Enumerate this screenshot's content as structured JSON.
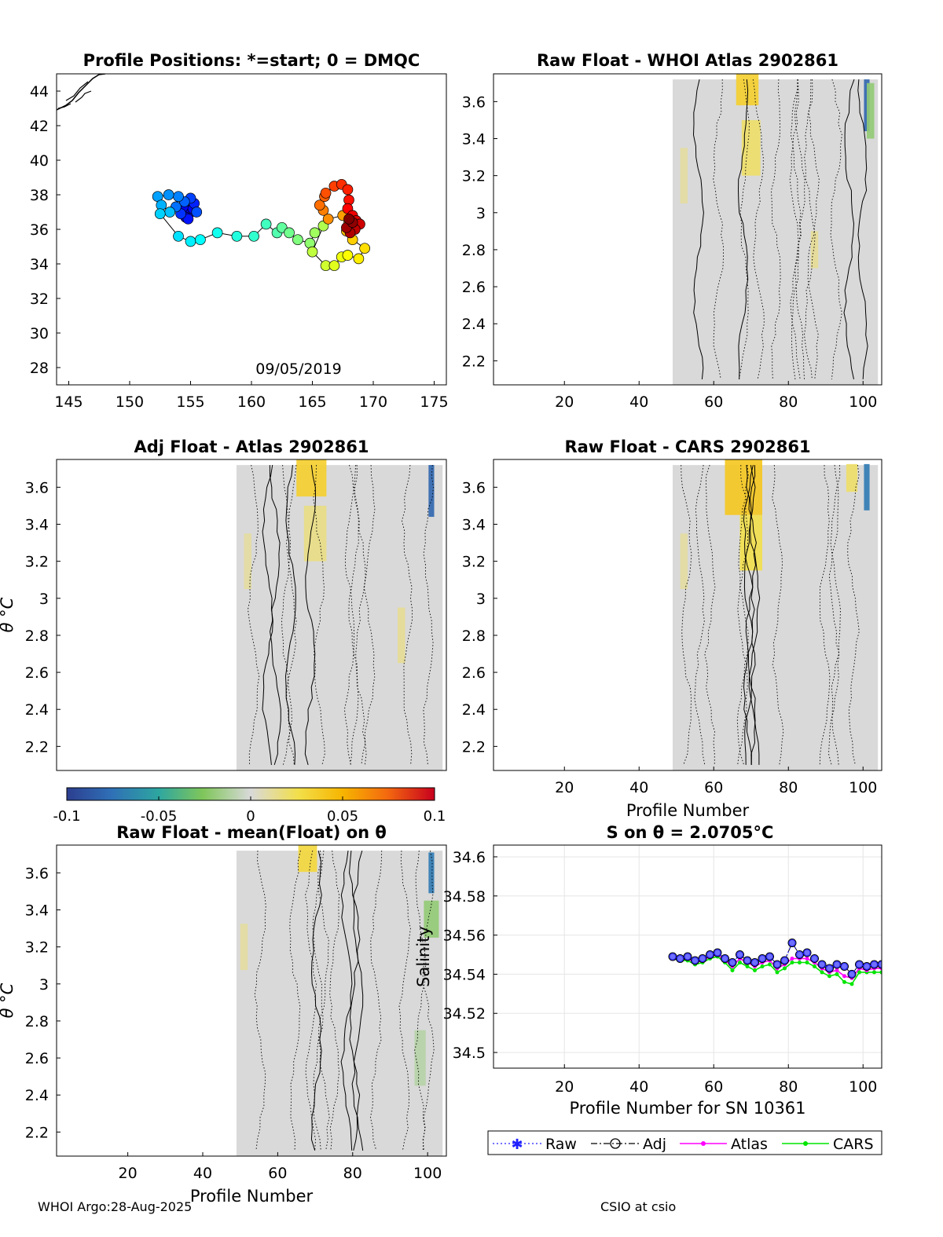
{
  "colors": {
    "neutral": "#d9d9d9",
    "contour": "#000000",
    "track": "#000000",
    "raw": "#1f1fff",
    "adj": "#000000",
    "atlas": "#ff00ff",
    "cars": "#00e600"
  },
  "panels": {
    "map": {
      "title": "Profile Positions: *=start; 0 = DMQC",
      "date": "09/05/2019",
      "xticks": [
        "145",
        "150",
        "155",
        "160",
        "165",
        "170",
        "175"
      ],
      "yticks": [
        "44",
        "42",
        "40",
        "38",
        "36",
        "34",
        "32",
        "30",
        "28"
      ]
    },
    "p2": {
      "title": "Raw Float - WHOI Atlas  2902861"
    },
    "p3": {
      "title": "Adj Float - Atlas  2902861",
      "ylabel": "θ °C"
    },
    "p4": {
      "title": "Raw Float - CARS  2902861",
      "xlabel": "Profile Number"
    },
    "p5": {
      "title": "Raw Float - mean(Float) on θ",
      "ylabel": "θ °C",
      "xlabel": "Profile Number"
    },
    "p6": {
      "title": "S on θ = 2.0705°C",
      "ylabel": "Salinity",
      "xlabel": "Profile Number for SN 10361"
    },
    "theta_ticks": [
      "3.6",
      "3.4",
      "3.2",
      "3",
      "2.8",
      "2.6",
      "2.4",
      "2.2"
    ],
    "profile_ticks": [
      "20",
      "40",
      "60",
      "80",
      "100"
    ],
    "sal_ticks": [
      "34.6",
      "34.58",
      "34.56",
      "34.54",
      "34.52",
      "34.5"
    ]
  },
  "colorbar": {
    "ticks": [
      "-0.1",
      "-0.05",
      "0",
      "0.05",
      "0.1"
    ]
  },
  "legend": {
    "raw": "Raw",
    "adj": "Adj",
    "atlas": "Atlas",
    "cars": "CARS"
  },
  "footer": {
    "left": "WHOI Argo:28-Aug-2025",
    "right": "CSIO at csio"
  },
  "chart_data": [
    {
      "type": "scatter",
      "name": "profile positions",
      "title": "Profile Positions: *=start; 0 = DMQC",
      "xlim": [
        144,
        176
      ],
      "ylim": [
        27,
        45
      ],
      "annotation": "09/05/2019",
      "track": [
        {
          "lon": 155.0,
          "lat": 37.0
        },
        {
          "lon": 154.6,
          "lat": 36.7
        },
        {
          "lon": 154.4,
          "lat": 37.3
        },
        {
          "lon": 155.2,
          "lat": 37.2
        },
        {
          "lon": 154.8,
          "lat": 36.6
        },
        {
          "lon": 155.3,
          "lat": 37.5
        },
        {
          "lon": 154.2,
          "lat": 36.9
        },
        {
          "lon": 155.0,
          "lat": 37.8
        },
        {
          "lon": 155.5,
          "lat": 37.0
        },
        {
          "lon": 154.5,
          "lat": 37.6
        },
        {
          "lon": 153.8,
          "lat": 37.3
        },
        {
          "lon": 154.0,
          "lat": 37.9
        },
        {
          "lon": 153.2,
          "lat": 38.0
        },
        {
          "lon": 152.3,
          "lat": 37.9
        },
        {
          "lon": 152.6,
          "lat": 37.4
        },
        {
          "lon": 153.3,
          "lat": 37.0
        },
        {
          "lon": 152.5,
          "lat": 36.9
        },
        {
          "lon": 154.0,
          "lat": 35.6
        },
        {
          "lon": 155.0,
          "lat": 35.3
        },
        {
          "lon": 155.8,
          "lat": 35.4
        },
        {
          "lon": 157.2,
          "lat": 35.8
        },
        {
          "lon": 158.8,
          "lat": 35.6
        },
        {
          "lon": 160.2,
          "lat": 35.6
        },
        {
          "lon": 161.2,
          "lat": 36.3
        },
        {
          "lon": 162.1,
          "lat": 35.8
        },
        {
          "lon": 162.5,
          "lat": 36.1
        },
        {
          "lon": 163.1,
          "lat": 35.8
        },
        {
          "lon": 163.8,
          "lat": 35.4
        },
        {
          "lon": 164.8,
          "lat": 35.2
        },
        {
          "lon": 165.2,
          "lat": 35.8
        },
        {
          "lon": 165.9,
          "lat": 36.2
        },
        {
          "lon": 165.0,
          "lat": 34.7
        },
        {
          "lon": 166.1,
          "lat": 33.9
        },
        {
          "lon": 166.8,
          "lat": 33.9
        },
        {
          "lon": 167.4,
          "lat": 34.4
        },
        {
          "lon": 167.9,
          "lat": 34.5
        },
        {
          "lon": 168.8,
          "lat": 34.3
        },
        {
          "lon": 169.3,
          "lat": 34.9
        },
        {
          "lon": 168.3,
          "lat": 35.4
        },
        {
          "lon": 167.8,
          "lat": 35.9
        },
        {
          "lon": 168.0,
          "lat": 36.4
        },
        {
          "lon": 167.5,
          "lat": 36.8
        },
        {
          "lon": 166.3,
          "lat": 36.6
        },
        {
          "lon": 165.9,
          "lat": 37.1
        },
        {
          "lon": 165.6,
          "lat": 37.4
        },
        {
          "lon": 166.0,
          "lat": 37.9
        },
        {
          "lon": 166.1,
          "lat": 38.1
        },
        {
          "lon": 166.8,
          "lat": 38.5
        },
        {
          "lon": 167.4,
          "lat": 38.6
        },
        {
          "lon": 167.9,
          "lat": 38.3
        },
        {
          "lon": 168.0,
          "lat": 37.7
        },
        {
          "lon": 167.9,
          "lat": 37.2
        },
        {
          "lon": 168.3,
          "lat": 36.8
        },
        {
          "lon": 168.6,
          "lat": 36.5
        },
        {
          "lon": 168.9,
          "lat": 36.3
        },
        {
          "lon": 168.5,
          "lat": 36.0
        },
        {
          "lon": 168.1,
          "lat": 35.8
        },
        {
          "lon": 167.8,
          "lat": 36.1
        },
        {
          "lon": 168.3,
          "lat": 36.4
        },
        {
          "lon": 168.0,
          "lat": 36.6
        }
      ]
    },
    {
      "type": "heatmap",
      "name": "Raw Float - WHOI Atlas  2902861",
      "xlim": [
        1,
        105
      ],
      "ylim": [
        2.07,
        3.75
      ],
      "data_x_range": [
        49,
        104
      ],
      "colorbar_range": [
        -0.1,
        0.1
      ],
      "anomalies": [
        {
          "x": 69,
          "y": 3.68,
          "value": 0.035,
          "w": 6,
          "h": 0.2
        },
        {
          "x": 70,
          "y": 3.35,
          "value": 0.02,
          "w": 5,
          "h": 0.3
        },
        {
          "x": 101,
          "y": 3.58,
          "value": -0.08,
          "w": 1.5,
          "h": 0.28
        },
        {
          "x": 102,
          "y": 3.55,
          "value": -0.02,
          "w": 2,
          "h": 0.3
        },
        {
          "x": 52,
          "y": 3.2,
          "value": 0.01,
          "w": 2,
          "h": 0.3
        },
        {
          "x": 87,
          "y": 2.8,
          "value": 0.012,
          "w": 2,
          "h": 0.2
        }
      ]
    },
    {
      "type": "heatmap",
      "name": "Adj Float - Atlas  2902861",
      "xlim": [
        1,
        105
      ],
      "ylim": [
        2.07,
        3.75
      ],
      "data_x_range": [
        49,
        104
      ],
      "colorbar_range": [
        -0.1,
        0.1
      ],
      "anomalies": [
        {
          "x": 69,
          "y": 3.65,
          "value": 0.035,
          "w": 8,
          "h": 0.2
        },
        {
          "x": 70,
          "y": 3.35,
          "value": 0.015,
          "w": 6,
          "h": 0.3
        },
        {
          "x": 101,
          "y": 3.58,
          "value": -0.08,
          "w": 1.5,
          "h": 0.28
        },
        {
          "x": 93,
          "y": 2.8,
          "value": 0.012,
          "w": 2,
          "h": 0.3
        },
        {
          "x": 52,
          "y": 3.2,
          "value": 0.01,
          "w": 2,
          "h": 0.3
        }
      ]
    },
    {
      "type": "heatmap",
      "name": "Raw Float - CARS  2902861",
      "xlim": [
        1,
        105
      ],
      "ylim": [
        2.07,
        3.75
      ],
      "data_x_range": [
        49,
        104
      ],
      "colorbar_range": [
        -0.1,
        0.1
      ],
      "anomalies": [
        {
          "x": 68,
          "y": 3.6,
          "value": 0.04,
          "w": 10,
          "h": 0.3
        },
        {
          "x": 70,
          "y": 3.3,
          "value": 0.025,
          "w": 6,
          "h": 0.3
        },
        {
          "x": 101,
          "y": 3.6,
          "value": -0.07,
          "w": 1.5,
          "h": 0.25
        },
        {
          "x": 97,
          "y": 3.65,
          "value": 0.02,
          "w": 3,
          "h": 0.15
        },
        {
          "x": 52,
          "y": 3.2,
          "value": 0.01,
          "w": 2,
          "h": 0.3
        }
      ]
    },
    {
      "type": "heatmap",
      "name": "Raw Float - mean(Float) on θ",
      "xlim": [
        1,
        105
      ],
      "ylim": [
        2.07,
        3.75
      ],
      "data_x_range": [
        49,
        104
      ],
      "colorbar_range": [
        -0.1,
        0.1
      ],
      "anomalies": [
        {
          "x": 68,
          "y": 3.68,
          "value": 0.03,
          "w": 5,
          "h": 0.15
        },
        {
          "x": 101,
          "y": 3.6,
          "value": -0.07,
          "w": 1.5,
          "h": 0.22
        },
        {
          "x": 101,
          "y": 3.35,
          "value": -0.02,
          "w": 4,
          "h": 0.2
        },
        {
          "x": 51,
          "y": 3.2,
          "value": 0.01,
          "w": 2,
          "h": 0.25
        },
        {
          "x": 98,
          "y": 2.6,
          "value": -0.01,
          "w": 3,
          "h": 0.3
        }
      ]
    },
    {
      "type": "line",
      "name": "S on θ = 2.0705°C",
      "title": "S on θ = 2.0705°C",
      "xlabel": "Profile Number for SN 10361",
      "ylabel": "Salinity",
      "xlim": [
        1,
        105
      ],
      "ylim": [
        34.492,
        34.606
      ],
      "x": [
        49,
        51,
        53,
        55,
        57,
        59,
        61,
        63,
        65,
        67,
        69,
        71,
        73,
        75,
        77,
        79,
        81,
        83,
        85,
        87,
        89,
        91,
        93,
        95,
        97,
        99,
        101,
        103,
        105
      ],
      "series": [
        {
          "name": "Raw",
          "values": [
            34.549,
            34.548,
            34.549,
            34.547,
            34.548,
            34.55,
            34.551,
            34.548,
            34.546,
            34.55,
            34.547,
            34.546,
            34.548,
            34.549,
            34.545,
            34.547,
            34.556,
            34.55,
            34.551,
            34.548,
            34.545,
            34.543,
            34.545,
            34.544,
            34.54,
            34.545,
            34.544,
            34.545,
            34.545
          ]
        },
        {
          "name": "Adj",
          "values": [
            34.549,
            34.548,
            34.549,
            34.547,
            34.548,
            34.55,
            34.551,
            34.548,
            34.546,
            34.55,
            34.547,
            34.546,
            34.548,
            34.549,
            34.545,
            34.547,
            34.556,
            34.55,
            34.551,
            34.548,
            34.545,
            34.543,
            34.545,
            34.544,
            34.54,
            34.545,
            34.544,
            34.545,
            34.545
          ]
        },
        {
          "name": "Atlas",
          "values": [
            34.548,
            34.548,
            34.548,
            34.546,
            34.547,
            34.549,
            34.55,
            34.547,
            34.544,
            34.548,
            34.546,
            34.544,
            34.546,
            34.547,
            34.543,
            34.545,
            34.548,
            34.548,
            34.548,
            34.546,
            34.543,
            34.541,
            34.542,
            34.539,
            34.538,
            34.543,
            34.542,
            34.543,
            34.543
          ]
        },
        {
          "name": "CARS",
          "values": [
            34.548,
            34.547,
            34.547,
            34.545,
            34.546,
            34.548,
            34.549,
            34.546,
            34.542,
            34.546,
            34.544,
            34.542,
            34.544,
            34.545,
            34.541,
            34.543,
            34.546,
            34.546,
            34.546,
            34.544,
            34.541,
            34.539,
            34.54,
            34.536,
            34.535,
            34.541,
            34.541,
            34.541,
            34.541
          ]
        }
      ]
    }
  ]
}
